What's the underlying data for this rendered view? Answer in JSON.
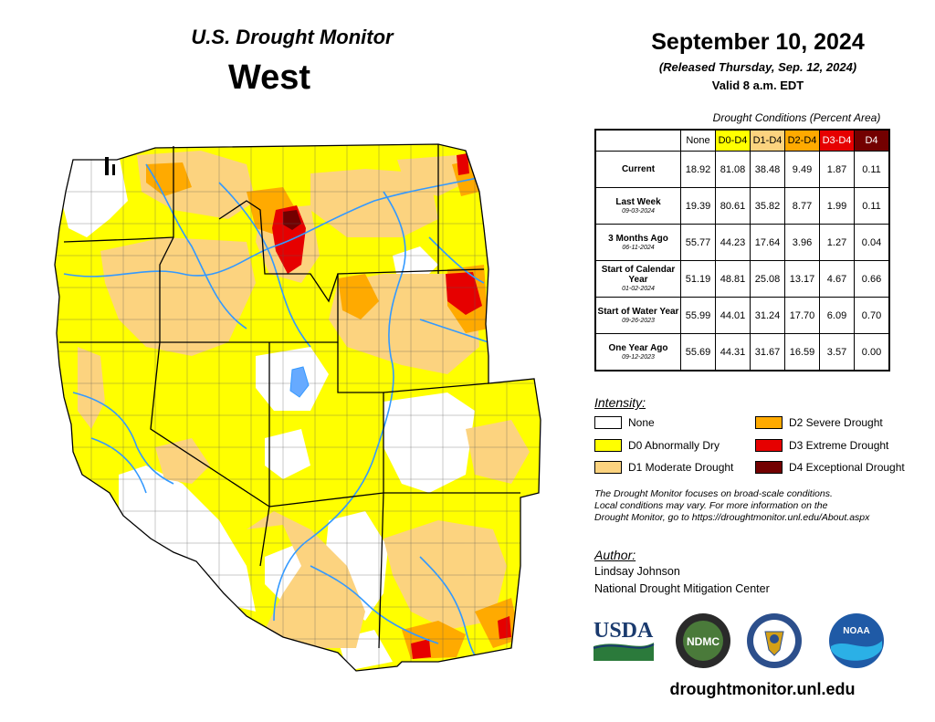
{
  "header": {
    "title": "U.S. Drought Monitor",
    "region": "West",
    "date": "September 10, 2024",
    "released": "(Released Thursday, Sep. 12, 2024)",
    "valid": "Valid 8 a.m. EDT"
  },
  "conditions": {
    "caption": "Drought Conditions (Percent Area)",
    "columns": [
      {
        "label": "None",
        "color": "#ffffff"
      },
      {
        "label": "D0-D4",
        "color": "#ffff00"
      },
      {
        "label": "D1-D4",
        "color": "#fcd37f"
      },
      {
        "label": "D2-D4",
        "color": "#ffaa00"
      },
      {
        "label": "D3-D4",
        "color": "#e60000"
      },
      {
        "label": "D4",
        "color": "#730000"
      }
    ],
    "rows": [
      {
        "label": "Current",
        "date": "",
        "values": [
          "18.92",
          "81.08",
          "38.48",
          "9.49",
          "1.87",
          "0.11"
        ]
      },
      {
        "label": "Last Week",
        "date": "09-03-2024",
        "values": [
          "19.39",
          "80.61",
          "35.82",
          "8.77",
          "1.99",
          "0.11"
        ]
      },
      {
        "label": "3 Months Ago",
        "date": "06-11-2024",
        "values": [
          "55.77",
          "44.23",
          "17.64",
          "3.96",
          "1.27",
          "0.04"
        ]
      },
      {
        "label": "Start of Calendar Year",
        "date": "01-02-2024",
        "values": [
          "51.19",
          "48.81",
          "25.08",
          "13.17",
          "4.67",
          "0.66"
        ]
      },
      {
        "label": "Start of Water Year",
        "date": "09-26-2023",
        "values": [
          "55.99",
          "44.01",
          "31.24",
          "17.70",
          "6.09",
          "0.70"
        ]
      },
      {
        "label": "One Year Ago",
        "date": "09-12-2023",
        "values": [
          "55.69",
          "44.31",
          "31.67",
          "16.59",
          "3.57",
          "0.00"
        ]
      }
    ]
  },
  "legend": {
    "title": "Intensity:",
    "items": [
      {
        "label": "None",
        "color": "#ffffff"
      },
      {
        "label": "D0 Abnormally Dry",
        "color": "#ffff00"
      },
      {
        "label": "D1 Moderate Drought",
        "color": "#fcd37f"
      },
      {
        "label": "D2 Severe Drought",
        "color": "#ffaa00"
      },
      {
        "label": "D3 Extreme Drought",
        "color": "#e60000"
      },
      {
        "label": "D4 Exceptional Drought",
        "color": "#730000"
      }
    ]
  },
  "note": {
    "line1": "The Drought Monitor focuses on broad-scale conditions.",
    "line2": "Local conditions may vary. For more information on the",
    "line3": "Drought Monitor, go to https://droughtmonitor.unl.edu/About.aspx"
  },
  "author": {
    "title": "Author:",
    "name": "Lindsay Johnson",
    "org": "National Drought Mitigation Center"
  },
  "logos": {
    "usda": "USDA",
    "ndmc": "NDMC",
    "noaa": "NOAA"
  },
  "footer": {
    "url": "droughtmonitor.unl.edu"
  }
}
